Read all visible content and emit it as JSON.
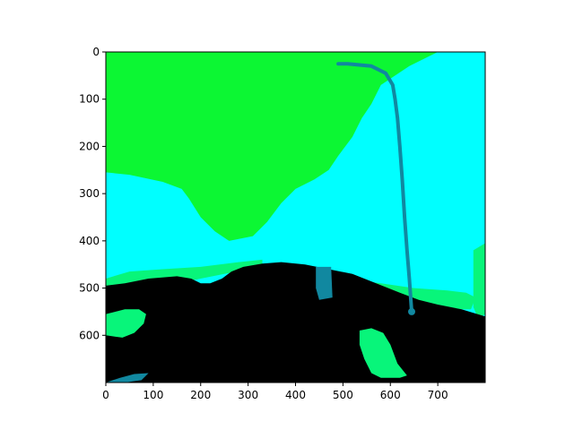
{
  "chart_data": {
    "type": "heatmap",
    "title": "",
    "xlabel": "",
    "ylabel": "",
    "xlim": [
      0,
      800
    ],
    "ylim": [
      700,
      0
    ],
    "y_inverted": true,
    "grid": false,
    "x_ticks": [
      0,
      100,
      200,
      300,
      400,
      500,
      600,
      700
    ],
    "y_ticks": [
      0,
      100,
      200,
      300,
      400,
      500,
      600
    ],
    "x_tick_labels": [
      "0",
      "100",
      "200",
      "300",
      "400",
      "500",
      "600",
      "700"
    ],
    "y_tick_labels": [
      "0",
      "100",
      "200",
      "300",
      "400",
      "500",
      "600"
    ],
    "colors": {
      "sky_green": "#0cf733",
      "cyan": "#00ffff",
      "mint": "#08f57a",
      "teal": "#1188a0",
      "black": "#000000",
      "axis": "#000000"
    },
    "regions": [
      {
        "name": "cyan-background",
        "color": "cyan",
        "points": [
          [
            0,
            0
          ],
          [
            800,
            0
          ],
          [
            800,
            700
          ],
          [
            0,
            700
          ]
        ]
      },
      {
        "name": "green-sky",
        "color": "sky_green",
        "points": [
          [
            0,
            0
          ],
          [
            700,
            0
          ],
          [
            640,
            30
          ],
          [
            580,
            70
          ],
          [
            560,
            110
          ],
          [
            540,
            140
          ],
          [
            520,
            180
          ],
          [
            490,
            220
          ],
          [
            470,
            250
          ],
          [
            440,
            270
          ],
          [
            400,
            290
          ],
          [
            370,
            320
          ],
          [
            340,
            360
          ],
          [
            310,
            390
          ],
          [
            260,
            400
          ],
          [
            230,
            380
          ],
          [
            200,
            350
          ],
          [
            175,
            310
          ],
          [
            160,
            290
          ],
          [
            120,
            275
          ],
          [
            50,
            260
          ],
          [
            0,
            255
          ]
        ]
      },
      {
        "name": "mint-left-band",
        "color": "mint",
        "points": [
          [
            0,
            480
          ],
          [
            50,
            465
          ],
          [
            120,
            460
          ],
          [
            200,
            455
          ],
          [
            280,
            445
          ],
          [
            330,
            440
          ],
          [
            330,
            455
          ],
          [
            250,
            470
          ],
          [
            150,
            490
          ],
          [
            60,
            500
          ],
          [
            0,
            505
          ]
        ]
      },
      {
        "name": "mint-right-band",
        "color": "mint",
        "points": [
          [
            500,
            480
          ],
          [
            580,
            490
          ],
          [
            650,
            500
          ],
          [
            720,
            505
          ],
          [
            760,
            510
          ],
          [
            780,
            520
          ],
          [
            770,
            545
          ],
          [
            730,
            545
          ],
          [
            680,
            530
          ],
          [
            620,
            520
          ],
          [
            560,
            505
          ],
          [
            500,
            495
          ]
        ]
      },
      {
        "name": "mint-right-edge",
        "color": "mint",
        "points": [
          [
            775,
            420
          ],
          [
            800,
            405
          ],
          [
            800,
            555
          ],
          [
            785,
            565
          ],
          [
            775,
            540
          ]
        ]
      },
      {
        "name": "ground-black",
        "color": "black",
        "points": [
          [
            0,
            495
          ],
          [
            40,
            490
          ],
          [
            90,
            480
          ],
          [
            150,
            475
          ],
          [
            180,
            480
          ],
          [
            200,
            490
          ],
          [
            220,
            490
          ],
          [
            245,
            480
          ],
          [
            265,
            465
          ],
          [
            290,
            455
          ],
          [
            330,
            448
          ],
          [
            370,
            445
          ],
          [
            420,
            450
          ],
          [
            470,
            460
          ],
          [
            520,
            470
          ],
          [
            570,
            490
          ],
          [
            620,
            510
          ],
          [
            660,
            525
          ],
          [
            700,
            535
          ],
          [
            750,
            545
          ],
          [
            800,
            560
          ],
          [
            800,
            700
          ],
          [
            0,
            700
          ]
        ]
      },
      {
        "name": "mint-left-patch",
        "color": "mint",
        "points": [
          [
            0,
            555
          ],
          [
            40,
            545
          ],
          [
            70,
            545
          ],
          [
            85,
            555
          ],
          [
            80,
            575
          ],
          [
            60,
            595
          ],
          [
            35,
            605
          ],
          [
            0,
            600
          ]
        ]
      },
      {
        "name": "mint-right-patch",
        "color": "mint",
        "points": [
          [
            535,
            590
          ],
          [
            560,
            585
          ],
          [
            585,
            595
          ],
          [
            600,
            620
          ],
          [
            615,
            660
          ],
          [
            635,
            685
          ],
          [
            620,
            690
          ],
          [
            580,
            690
          ],
          [
            560,
            680
          ],
          [
            545,
            650
          ],
          [
            535,
            620
          ]
        ]
      },
      {
        "name": "teal-road-left",
        "color": "teal",
        "points": [
          [
            0,
            700
          ],
          [
            30,
            690
          ],
          [
            60,
            682
          ],
          [
            90,
            680
          ],
          [
            75,
            695
          ],
          [
            40,
            700
          ]
        ]
      },
      {
        "name": "teal-pole-base",
        "color": "teal",
        "points": [
          [
            443,
            455
          ],
          [
            475,
            455
          ],
          [
            478,
            520
          ],
          [
            450,
            525
          ],
          [
            443,
            500
          ]
        ]
      }
    ],
    "lines": [
      {
        "name": "street-lamp",
        "color": "teal",
        "width": 4,
        "points": [
          [
            490,
            25
          ],
          [
            510,
            25
          ],
          [
            560,
            30
          ],
          [
            590,
            45
          ],
          [
            605,
            70
          ],
          [
            610,
            100
          ],
          [
            615,
            140
          ],
          [
            620,
            200
          ],
          [
            625,
            270
          ],
          [
            630,
            350
          ],
          [
            635,
            420
          ],
          [
            640,
            480
          ],
          [
            645,
            550
          ]
        ]
      }
    ]
  }
}
